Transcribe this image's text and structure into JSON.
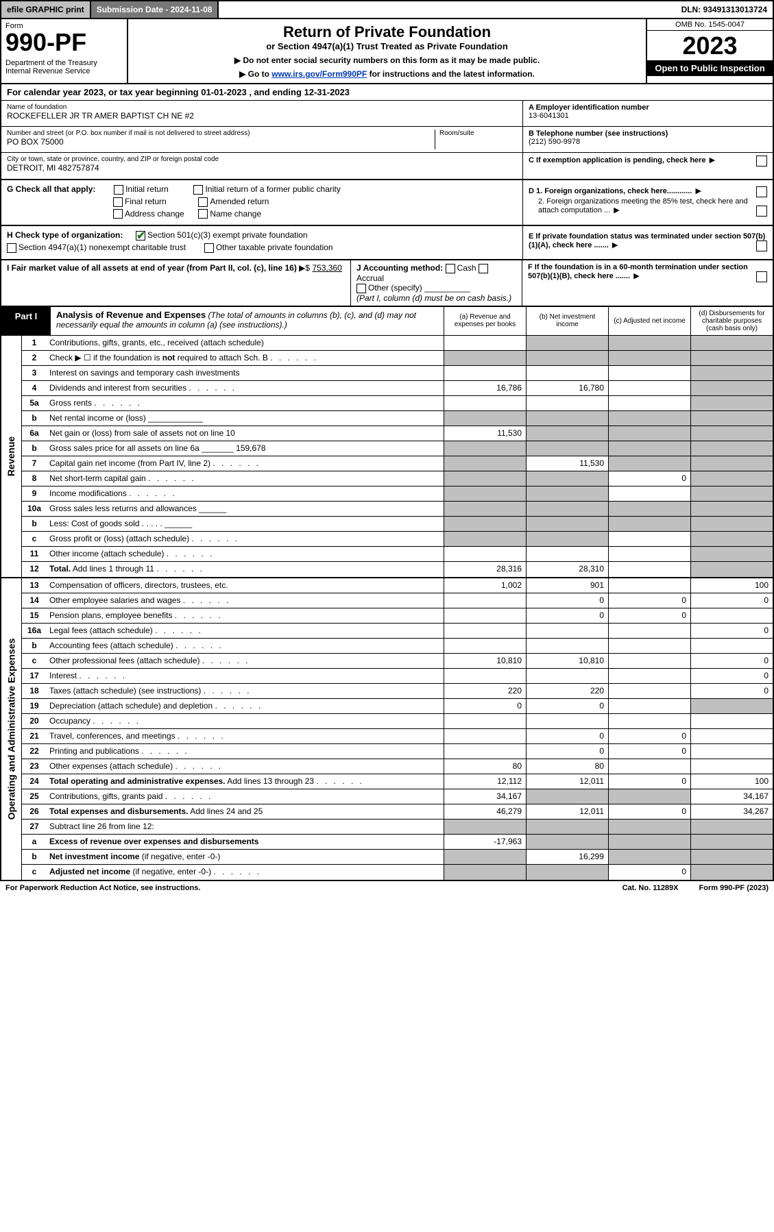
{
  "top": {
    "efile": "efile GRAPHIC print",
    "submission": "Submission Date - 2024-11-08",
    "dln": "DLN: 93491313013724"
  },
  "header": {
    "form_word": "Form",
    "form_number": "990-PF",
    "dept": "Department of the Treasury\nInternal Revenue Service",
    "title": "Return of Private Foundation",
    "subtitle": "or Section 4947(a)(1) Trust Treated as Private Foundation",
    "note1": "▶ Do not enter social security numbers on this form as it may be made public.",
    "note2_pre": "▶ Go to ",
    "note2_link": "www.irs.gov/Form990PF",
    "note2_post": " for instructions and the latest information.",
    "omb": "OMB No. 1545-0047",
    "year": "2023",
    "open": "Open to Public Inspection"
  },
  "cal_year": "For calendar year 2023, or tax year beginning 01-01-2023             , and ending 12-31-2023",
  "info": {
    "name_lbl": "Name of foundation",
    "name": "ROCKEFELLER JR TR AMER BAPTIST CH NE #2",
    "addr_lbl": "Number and street (or P.O. box number if mail is not delivered to street address)",
    "addr": "PO BOX 75000",
    "room_lbl": "Room/suite",
    "city_lbl": "City or town, state or province, country, and ZIP or foreign postal code",
    "city": "DETROIT, MI  482757874",
    "a_lbl": "A Employer identification number",
    "a_val": "13-6041301",
    "b_lbl": "B Telephone number (see instructions)",
    "b_val": "(212) 590-9978",
    "c_lbl": "C If exemption application is pending, check here"
  },
  "g": {
    "label": "G Check all that apply:",
    "initial": "Initial return",
    "initial_former": "Initial return of a former public charity",
    "final": "Final return",
    "amended": "Amended return",
    "address": "Address change",
    "name_change": "Name change"
  },
  "d": {
    "d1": "D 1. Foreign organizations, check here............",
    "d2": "2. Foreign organizations meeting the 85% test, check here and attach computation ...",
    "e": "E  If private foundation status was terminated under section 507(b)(1)(A), check here .......",
    "f": "F  If the foundation is in a 60-month termination under section 507(b)(1)(B), check here ......."
  },
  "h": {
    "label": "H Check type of organization:",
    "opt1": "Section 501(c)(3) exempt private foundation",
    "opt2": "Section 4947(a)(1) nonexempt charitable trust",
    "opt3": "Other taxable private foundation"
  },
  "i": {
    "label": "I Fair market value of all assets at end of year (from Part II, col. (c), line 16)",
    "arrow": "▶$",
    "val": "753,360"
  },
  "j": {
    "label": "J Accounting method:",
    "cash": "Cash",
    "accrual": "Accrual",
    "other": "Other (specify)",
    "note": "(Part I, column (d) must be on cash basis.)"
  },
  "part1": {
    "label": "Part I",
    "title": "Analysis of Revenue and Expenses",
    "note": "(The total of amounts in columns (b), (c), and (d) may not necessarily equal the amounts in column (a) (see instructions).)",
    "col_a": "(a)  Revenue and expenses per books",
    "col_b": "(b)  Net investment income",
    "col_c": "(c)  Adjusted net income",
    "col_d": "(d)  Disbursements for charitable purposes (cash basis only)"
  },
  "side_labels": {
    "revenue": "Revenue",
    "expenses": "Operating and Administrative Expenses"
  },
  "rows": [
    {
      "ln": "1",
      "desc": "Contributions, gifts, grants, etc., received (attach schedule)",
      "a": "",
      "b": "grey",
      "c": "grey",
      "d": "grey"
    },
    {
      "ln": "2",
      "desc": "Check ▶ ☐ if the foundation is <b>not</b> required to attach Sch. B",
      "a": "grey",
      "b": "grey",
      "c": "grey",
      "d": "grey",
      "dots": true
    },
    {
      "ln": "3",
      "desc": "Interest on savings and temporary cash investments",
      "a": "",
      "b": "",
      "c": "",
      "d": "grey"
    },
    {
      "ln": "4",
      "desc": "Dividends and interest from securities",
      "a": "16,786",
      "b": "16,780",
      "c": "",
      "d": "grey",
      "dots": true
    },
    {
      "ln": "5a",
      "desc": "Gross rents",
      "a": "",
      "b": "",
      "c": "",
      "d": "grey",
      "dots": true
    },
    {
      "ln": "b",
      "desc": "Net rental income or (loss)  ____________",
      "a": "grey",
      "b": "grey",
      "c": "grey",
      "d": "grey"
    },
    {
      "ln": "6a",
      "desc": "Net gain or (loss) from sale of assets not on line 10",
      "a": "11,530",
      "b": "grey",
      "c": "grey",
      "d": "grey"
    },
    {
      "ln": "b",
      "desc": "Gross sales price for all assets on line 6a _______ 159,678",
      "a": "grey",
      "b": "grey",
      "c": "grey",
      "d": "grey"
    },
    {
      "ln": "7",
      "desc": "Capital gain net income (from Part IV, line 2)",
      "a": "grey",
      "b": "11,530",
      "c": "grey",
      "d": "grey",
      "dots": true
    },
    {
      "ln": "8",
      "desc": "Net short-term capital gain",
      "a": "grey",
      "b": "grey",
      "c": "0",
      "d": "grey",
      "dots": true
    },
    {
      "ln": "9",
      "desc": "Income modifications",
      "a": "grey",
      "b": "grey",
      "c": "",
      "d": "grey",
      "dots": true
    },
    {
      "ln": "10a",
      "desc": "Gross sales less returns and allowances  ______",
      "a": "grey",
      "b": "grey",
      "c": "grey",
      "d": "grey"
    },
    {
      "ln": "b",
      "desc": "Less: Cost of goods sold     .  .  .  .  .  ______",
      "a": "grey",
      "b": "grey",
      "c": "grey",
      "d": "grey"
    },
    {
      "ln": "c",
      "desc": "Gross profit or (loss) (attach schedule)",
      "a": "grey",
      "b": "grey",
      "c": "",
      "d": "grey",
      "dots": true
    },
    {
      "ln": "11",
      "desc": "Other income (attach schedule)",
      "a": "",
      "b": "",
      "c": "",
      "d": "grey",
      "dots": true
    },
    {
      "ln": "12",
      "desc": "<b>Total.</b> Add lines 1 through 11",
      "a": "28,316",
      "b": "28,310",
      "c": "",
      "d": "grey",
      "dots": true
    }
  ],
  "exp_rows": [
    {
      "ln": "13",
      "desc": "Compensation of officers, directors, trustees, etc.",
      "a": "1,002",
      "b": "901",
      "c": "",
      "d": "100"
    },
    {
      "ln": "14",
      "desc": "Other employee salaries and wages",
      "a": "",
      "b": "0",
      "c": "0",
      "d": "0",
      "dots": true
    },
    {
      "ln": "15",
      "desc": "Pension plans, employee benefits",
      "a": "",
      "b": "0",
      "c": "0",
      "d": "",
      "dots": true
    },
    {
      "ln": "16a",
      "desc": "Legal fees (attach schedule)",
      "a": "",
      "b": "",
      "c": "",
      "d": "0",
      "dots": true
    },
    {
      "ln": "b",
      "desc": "Accounting fees (attach schedule)",
      "a": "",
      "b": "",
      "c": "",
      "d": "",
      "dots": true
    },
    {
      "ln": "c",
      "desc": "Other professional fees (attach schedule)",
      "a": "10,810",
      "b": "10,810",
      "c": "",
      "d": "0",
      "dots": true
    },
    {
      "ln": "17",
      "desc": "Interest",
      "a": "",
      "b": "",
      "c": "",
      "d": "0",
      "dots": true
    },
    {
      "ln": "18",
      "desc": "Taxes (attach schedule) (see instructions)",
      "a": "220",
      "b": "220",
      "c": "",
      "d": "0",
      "dots": true
    },
    {
      "ln": "19",
      "desc": "Depreciation (attach schedule) and depletion",
      "a": "0",
      "b": "0",
      "c": "",
      "d": "grey",
      "dots": true
    },
    {
      "ln": "20",
      "desc": "Occupancy",
      "a": "",
      "b": "",
      "c": "",
      "d": "",
      "dots": true
    },
    {
      "ln": "21",
      "desc": "Travel, conferences, and meetings",
      "a": "",
      "b": "0",
      "c": "0",
      "d": "",
      "dots": true
    },
    {
      "ln": "22",
      "desc": "Printing and publications",
      "a": "",
      "b": "0",
      "c": "0",
      "d": "",
      "dots": true
    },
    {
      "ln": "23",
      "desc": "Other expenses (attach schedule)",
      "a": "80",
      "b": "80",
      "c": "",
      "d": "",
      "dots": true
    },
    {
      "ln": "24",
      "desc": "<b>Total operating and administrative expenses.</b> Add lines 13 through 23",
      "a": "12,112",
      "b": "12,011",
      "c": "0",
      "d": "100",
      "dots": true
    },
    {
      "ln": "25",
      "desc": "Contributions, gifts, grants paid",
      "a": "34,167",
      "b": "grey",
      "c": "grey",
      "d": "34,167",
      "dots": true
    },
    {
      "ln": "26",
      "desc": "<b>Total expenses and disbursements.</b> Add lines 24 and 25",
      "a": "46,279",
      "b": "12,011",
      "c": "0",
      "d": "34,267"
    },
    {
      "ln": "27",
      "desc": "Subtract line 26 from line 12:",
      "a": "grey",
      "b": "grey",
      "c": "grey",
      "d": "grey"
    },
    {
      "ln": "a",
      "desc": "<b>Excess of revenue over expenses and disbursements</b>",
      "a": "-17,963",
      "b": "grey",
      "c": "grey",
      "d": "grey"
    },
    {
      "ln": "b",
      "desc": "<b>Net investment income</b> (if negative, enter -0-)",
      "a": "grey",
      "b": "16,299",
      "c": "grey",
      "d": "grey"
    },
    {
      "ln": "c",
      "desc": "<b>Adjusted net income</b> (if negative, enter -0-)",
      "a": "grey",
      "b": "grey",
      "c": "0",
      "d": "grey",
      "dots": true
    }
  ],
  "footer": {
    "left": "For Paperwork Reduction Act Notice, see instructions.",
    "mid": "Cat. No. 11289X",
    "right": "Form 990-PF (2023)"
  }
}
